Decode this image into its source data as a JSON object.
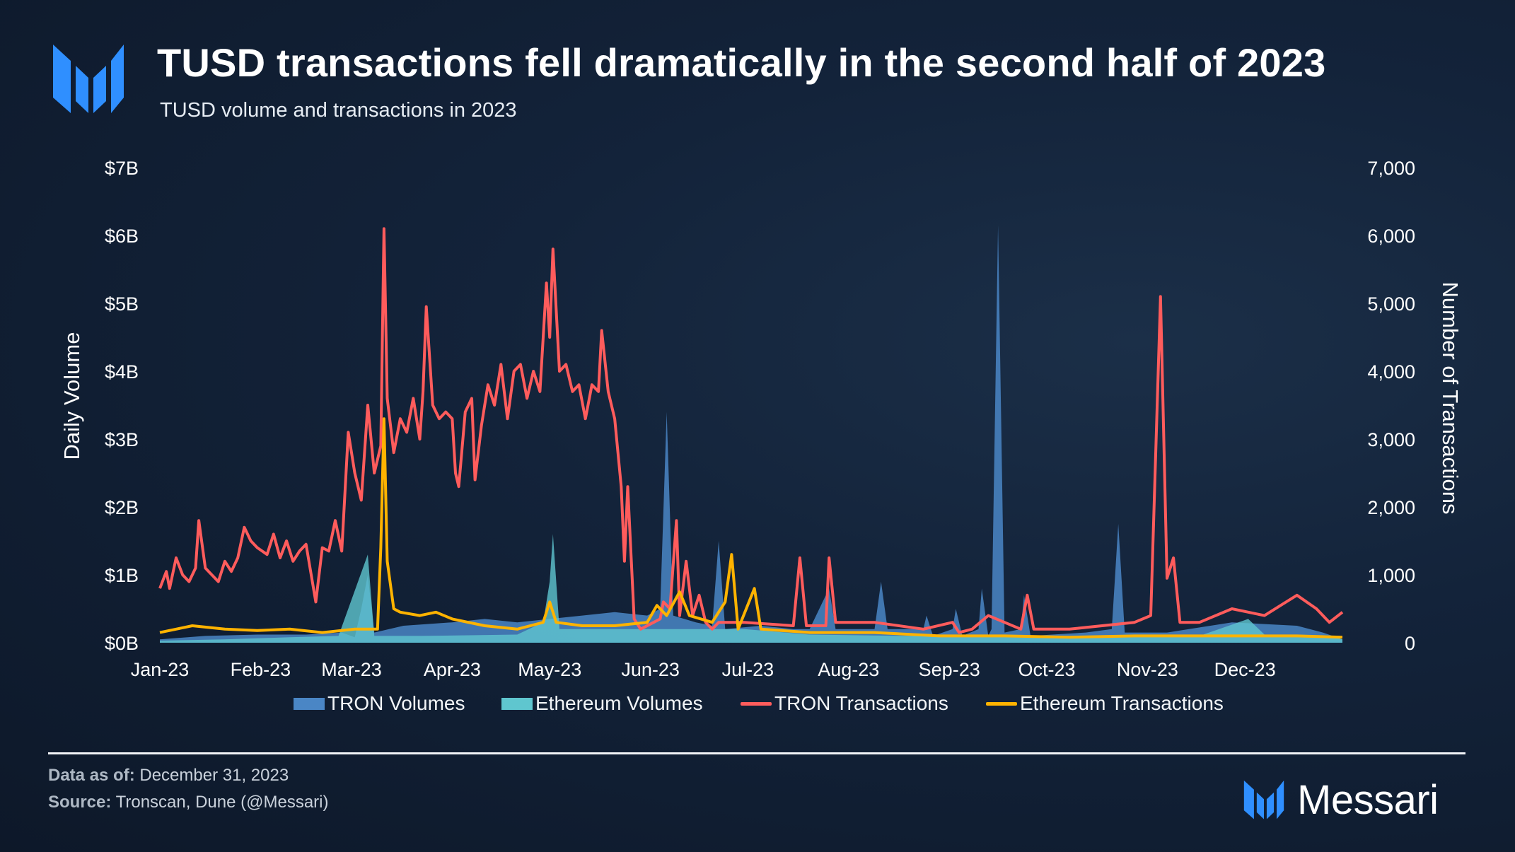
{
  "header": {
    "title": "TUSD transactions fell dramatically in the second half of 2023",
    "subtitle": "TUSD volume and transactions in 2023"
  },
  "footer": {
    "data_as_of_label": "Data as of:",
    "data_as_of_value": "December 31, 2023",
    "source_label": "Source:",
    "source_value": "Tronscan, Dune (@Messari)",
    "brand": "Messari"
  },
  "colors": {
    "tron_volumes": "#4a86c5",
    "ethereum_volumes": "#5fc6cf",
    "tron_transactions": "#ff5c5c",
    "ethereum_transactions": "#ffb300",
    "logo": "#2f8fff"
  },
  "chart_data": {
    "type": "area",
    "x_ticks": [
      "Jan-23",
      "Feb-23",
      "Mar-23",
      "Apr-23",
      "May-23",
      "Jun-23",
      "Jul-23",
      "Aug-23",
      "Sep-23",
      "Oct-23",
      "Nov-23",
      "Dec-23"
    ],
    "y_left": {
      "label": "Daily Volume",
      "ticks": [
        "$0B",
        "$1B",
        "$2B",
        "$3B",
        "$4B",
        "$5B",
        "$6B",
        "$7B"
      ],
      "range": [
        0,
        7
      ],
      "unit": "$B"
    },
    "y_right": {
      "label": "Number of Transactions",
      "ticks": [
        "0",
        "1,000",
        "2,000",
        "3,000",
        "4,000",
        "5,000",
        "6,000",
        "7,000"
      ],
      "range": [
        0,
        7000
      ]
    },
    "grid": false,
    "legend": "bottom",
    "x_unit": "day of 2023",
    "series": [
      {
        "name": "TRON Volumes",
        "type": "area",
        "axis": "left",
        "points": [
          [
            0,
            0.05
          ],
          [
            14,
            0.1
          ],
          [
            30,
            0.12
          ],
          [
            45,
            0.12
          ],
          [
            56,
            0.15
          ],
          [
            60,
            0.08
          ],
          [
            62,
            0.5
          ],
          [
            64,
            1.0
          ],
          [
            66,
            0.15
          ],
          [
            75,
            0.25
          ],
          [
            90,
            0.3
          ],
          [
            100,
            0.35
          ],
          [
            110,
            0.3
          ],
          [
            120,
            0.35
          ],
          [
            130,
            0.4
          ],
          [
            140,
            0.45
          ],
          [
            150,
            0.4
          ],
          [
            154,
            0.5
          ],
          [
            156,
            3.4
          ],
          [
            158,
            0.4
          ],
          [
            165,
            0.3
          ],
          [
            170,
            0.25
          ],
          [
            172,
            1.5
          ],
          [
            174,
            0.2
          ],
          [
            185,
            0.25
          ],
          [
            195,
            0.2
          ],
          [
            200,
            0.2
          ],
          [
            206,
            0.8
          ],
          [
            208,
            0.2
          ],
          [
            220,
            0.2
          ],
          [
            222,
            0.9
          ],
          [
            224,
            0.2
          ],
          [
            235,
            0.2
          ],
          [
            236,
            0.4
          ],
          [
            238,
            0.1
          ],
          [
            244,
            0.2
          ],
          [
            245,
            0.5
          ],
          [
            247,
            0.1
          ],
          [
            252,
            0.2
          ],
          [
            253,
            0.8
          ],
          [
            255,
            0.1
          ],
          [
            256,
            0.2
          ],
          [
            258,
            6.15
          ],
          [
            260,
            0.15
          ],
          [
            265,
            0.2
          ],
          [
            266,
            0.7
          ],
          [
            268,
            0.1
          ],
          [
            285,
            0.15
          ],
          [
            293,
            0.2
          ],
          [
            295,
            1.75
          ],
          [
            297,
            0.15
          ],
          [
            310,
            0.15
          ],
          [
            330,
            0.3
          ],
          [
            350,
            0.25
          ],
          [
            358,
            0.15
          ],
          [
            364,
            0.05
          ]
        ]
      },
      {
        "name": "Ethereum Volumes",
        "type": "area",
        "axis": "left",
        "points": [
          [
            0,
            0.03
          ],
          [
            20,
            0.05
          ],
          [
            40,
            0.08
          ],
          [
            55,
            0.1
          ],
          [
            64,
            1.3
          ],
          [
            66,
            0.1
          ],
          [
            80,
            0.1
          ],
          [
            110,
            0.12
          ],
          [
            118,
            0.3
          ],
          [
            120,
            0.9
          ],
          [
            121,
            1.6
          ],
          [
            123,
            0.2
          ],
          [
            140,
            0.2
          ],
          [
            155,
            0.2
          ],
          [
            170,
            0.2
          ],
          [
            180,
            0.2
          ],
          [
            200,
            0.12
          ],
          [
            230,
            0.1
          ],
          [
            260,
            0.1
          ],
          [
            300,
            0.1
          ],
          [
            320,
            0.1
          ],
          [
            335,
            0.35
          ],
          [
            340,
            0.12
          ],
          [
            360,
            0.1
          ],
          [
            364,
            0.05
          ]
        ]
      },
      {
        "name": "TRON Transactions",
        "type": "line",
        "axis": "right",
        "points": [
          [
            0,
            800
          ],
          [
            2,
            1050
          ],
          [
            3,
            800
          ],
          [
            5,
            1250
          ],
          [
            7,
            1000
          ],
          [
            9,
            900
          ],
          [
            11,
            1100
          ],
          [
            12,
            1800
          ],
          [
            14,
            1100
          ],
          [
            16,
            1000
          ],
          [
            18,
            900
          ],
          [
            20,
            1200
          ],
          [
            22,
            1050
          ],
          [
            24,
            1250
          ],
          [
            26,
            1700
          ],
          [
            28,
            1500
          ],
          [
            30,
            1400
          ],
          [
            33,
            1300
          ],
          [
            35,
            1600
          ],
          [
            37,
            1250
          ],
          [
            39,
            1500
          ],
          [
            41,
            1200
          ],
          [
            43,
            1350
          ],
          [
            45,
            1450
          ],
          [
            48,
            600
          ],
          [
            50,
            1400
          ],
          [
            52,
            1350
          ],
          [
            54,
            1800
          ],
          [
            56,
            1350
          ],
          [
            58,
            3100
          ],
          [
            60,
            2500
          ],
          [
            62,
            2100
          ],
          [
            64,
            3500
          ],
          [
            66,
            2500
          ],
          [
            68,
            2900
          ],
          [
            69,
            6100
          ],
          [
            70,
            3600
          ],
          [
            72,
            2800
          ],
          [
            74,
            3300
          ],
          [
            76,
            3100
          ],
          [
            78,
            3600
          ],
          [
            80,
            3000
          ],
          [
            81,
            3700
          ],
          [
            82,
            4950
          ],
          [
            84,
            3500
          ],
          [
            86,
            3300
          ],
          [
            88,
            3400
          ],
          [
            90,
            3300
          ],
          [
            91,
            2500
          ],
          [
            92,
            2300
          ],
          [
            94,
            3400
          ],
          [
            96,
            3600
          ],
          [
            97,
            2400
          ],
          [
            99,
            3200
          ],
          [
            101,
            3800
          ],
          [
            103,
            3500
          ],
          [
            105,
            4100
          ],
          [
            107,
            3300
          ],
          [
            109,
            4000
          ],
          [
            111,
            4100
          ],
          [
            113,
            3600
          ],
          [
            115,
            4000
          ],
          [
            117,
            3700
          ],
          [
            119,
            5300
          ],
          [
            120,
            4500
          ],
          [
            121,
            5800
          ],
          [
            123,
            4000
          ],
          [
            125,
            4100
          ],
          [
            127,
            3700
          ],
          [
            129,
            3800
          ],
          [
            131,
            3300
          ],
          [
            133,
            3800
          ],
          [
            135,
            3700
          ],
          [
            136,
            4600
          ],
          [
            138,
            3700
          ],
          [
            140,
            3300
          ],
          [
            142,
            2300
          ],
          [
            143,
            1200
          ],
          [
            144,
            2300
          ],
          [
            146,
            350
          ],
          [
            148,
            200
          ],
          [
            152,
            300
          ],
          [
            154,
            350
          ],
          [
            155,
            600
          ],
          [
            157,
            500
          ],
          [
            159,
            1800
          ],
          [
            160,
            400
          ],
          [
            162,
            1200
          ],
          [
            164,
            400
          ],
          [
            166,
            700
          ],
          [
            168,
            300
          ],
          [
            170,
            200
          ],
          [
            172,
            300
          ],
          [
            180,
            300
          ],
          [
            195,
            250
          ],
          [
            197,
            1250
          ],
          [
            199,
            250
          ],
          [
            205,
            250
          ],
          [
            206,
            1250
          ],
          [
            208,
            300
          ],
          [
            220,
            300
          ],
          [
            235,
            200
          ],
          [
            244,
            300
          ],
          [
            246,
            150
          ],
          [
            250,
            200
          ],
          [
            255,
            400
          ],
          [
            265,
            200
          ],
          [
            267,
            700
          ],
          [
            269,
            200
          ],
          [
            280,
            200
          ],
          [
            300,
            300
          ],
          [
            305,
            400
          ],
          [
            308,
            5100
          ],
          [
            310,
            950
          ],
          [
            312,
            1250
          ],
          [
            314,
            300
          ],
          [
            320,
            300
          ],
          [
            330,
            500
          ],
          [
            340,
            400
          ],
          [
            345,
            550
          ],
          [
            350,
            700
          ],
          [
            356,
            500
          ],
          [
            360,
            300
          ],
          [
            364,
            450
          ]
        ]
      },
      {
        "name": "Ethereum Transactions",
        "type": "line",
        "axis": "right",
        "points": [
          [
            0,
            150
          ],
          [
            5,
            200
          ],
          [
            10,
            250
          ],
          [
            20,
            200
          ],
          [
            30,
            180
          ],
          [
            40,
            200
          ],
          [
            50,
            150
          ],
          [
            60,
            200
          ],
          [
            67,
            200
          ],
          [
            68,
            1400
          ],
          [
            69,
            3300
          ],
          [
            70,
            1200
          ],
          [
            72,
            500
          ],
          [
            74,
            450
          ],
          [
            80,
            400
          ],
          [
            85,
            450
          ],
          [
            90,
            350
          ],
          [
            100,
            250
          ],
          [
            110,
            200
          ],
          [
            118,
            300
          ],
          [
            120,
            600
          ],
          [
            122,
            300
          ],
          [
            130,
            250
          ],
          [
            140,
            250
          ],
          [
            150,
            300
          ],
          [
            153,
            550
          ],
          [
            156,
            400
          ],
          [
            160,
            750
          ],
          [
            163,
            400
          ],
          [
            170,
            300
          ],
          [
            174,
            600
          ],
          [
            176,
            1300
          ],
          [
            178,
            200
          ],
          [
            183,
            800
          ],
          [
            185,
            200
          ],
          [
            200,
            150
          ],
          [
            220,
            150
          ],
          [
            240,
            100
          ],
          [
            260,
            100
          ],
          [
            280,
            80
          ],
          [
            300,
            100
          ],
          [
            320,
            100
          ],
          [
            330,
            100
          ],
          [
            350,
            100
          ],
          [
            364,
            80
          ]
        ]
      }
    ]
  }
}
